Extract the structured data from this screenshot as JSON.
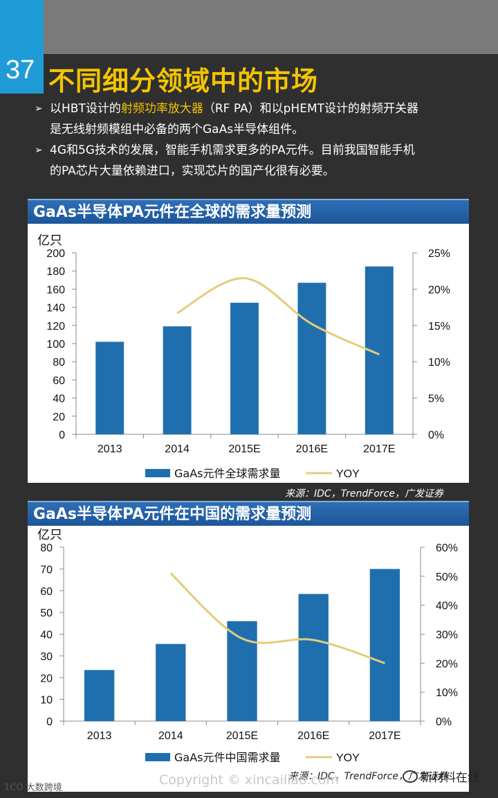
{
  "slide": {
    "number": "37",
    "title": "不同细分领域中的市场"
  },
  "bullets": [
    {
      "line1_a": "以HBT设计的",
      "line1_hl": "射频功率放大器",
      "line1_b": "（RF PA）和以pHEMT设计的射频开关器",
      "line2": "是无线射频模组中必备的两个GaAs半导体组件。"
    },
    {
      "line1": "4G和5G技术的发展，智能手机需求更多的PA元件。目前我国智能手机",
      "line2": "的PA芯片大量依赖进口，实现芯片的国产化很有必要。"
    }
  ],
  "chart_data": [
    {
      "type": "bar",
      "title": "GaAs半导体PA元件在全球的需求量预测",
      "ylabel": "亿只",
      "categories": [
        "2013",
        "2014",
        "2015E",
        "2016E",
        "2017E"
      ],
      "ylim": [
        0,
        200
      ],
      "yticks": [
        "0",
        "20",
        "40",
        "60",
        "80",
        "100",
        "120",
        "140",
        "160",
        "180",
        "200"
      ],
      "y2lim": [
        0,
        25
      ],
      "y2ticks": [
        "0%",
        "5%",
        "10%",
        "15%",
        "20%",
        "25%"
      ],
      "series": [
        {
          "name": "GaAs元件全球需求量",
          "kind": "bar",
          "axis": "left",
          "values": [
            102,
            119,
            145,
            167,
            185
          ]
        },
        {
          "name": "YOY",
          "kind": "line",
          "axis": "right",
          "values": [
            null,
            16.7,
            21.5,
            15.2,
            11
          ]
        }
      ],
      "colors": {
        "bar": "#1f6fae",
        "line": "#e3cc7a"
      },
      "source": "来源：IDC，TrendForce，广发证券"
    },
    {
      "type": "bar",
      "title": "GaAs半导体PA元件在中国的需求量预测",
      "ylabel": "亿只",
      "categories": [
        "2013",
        "2014",
        "2015E",
        "2016E",
        "2017E"
      ],
      "ylim": [
        0,
        80
      ],
      "yticks": [
        "0",
        "10",
        "20",
        "30",
        "40",
        "50",
        "60",
        "70",
        "80"
      ],
      "y2lim": [
        0,
        60
      ],
      "y2ticks": [
        "0%",
        "10%",
        "20%",
        "30%",
        "40%",
        "50%",
        "60%"
      ],
      "series": [
        {
          "name": "GaAs元件中国需求量",
          "kind": "bar",
          "axis": "left",
          "values": [
            23.5,
            35.5,
            46,
            58.5,
            70
          ]
        },
        {
          "name": "YOY",
          "kind": "line",
          "axis": "right",
          "values": [
            null,
            51,
            28.5,
            28,
            20
          ]
        }
      ],
      "colors": {
        "bar": "#1f6fae",
        "line": "#e3cc7a"
      },
      "source": "来源：IDC，TrendForce，广发证券"
    }
  ],
  "footer": {
    "copyright": "Copyright © xincailiao.com",
    "logo_left": "1CO 大数跨境",
    "logo_right": "新材料在线"
  }
}
